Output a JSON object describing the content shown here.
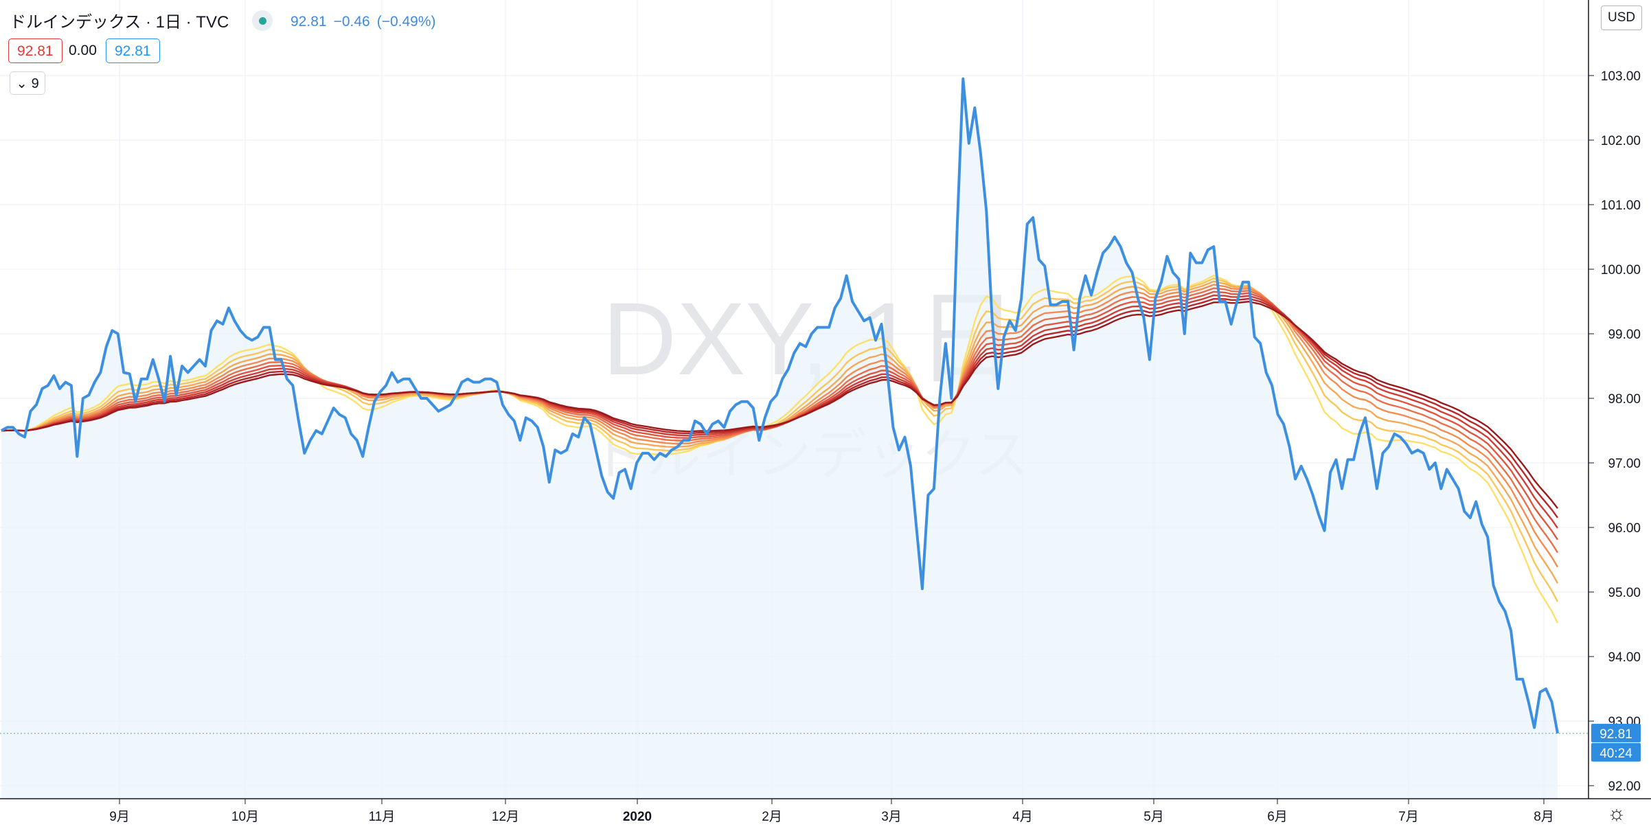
{
  "header": {
    "title": "ドルインデックス · 1日 · TVC",
    "last": "92.81",
    "change": "−0.46",
    "change_pct": "(−0.49%)",
    "sell_price": "92.81",
    "spread": "0.00",
    "buy_price": "92.81",
    "indicator_count": "9",
    "currency": "USD"
  },
  "watermark": {
    "symbol": "DXY, 1日",
    "name": "ドルインデックス"
  },
  "price_label": "92.81",
  "countdown_label": "40:24",
  "colors": {
    "price_line": "#3d8fe0",
    "area_fill": "#eaf3fb",
    "ribbon": [
      "#fde06a",
      "#fac65a",
      "#f6a955",
      "#f28c50",
      "#ea704a",
      "#df5641",
      "#cf3e34",
      "#b8282a",
      "#9a1a1c"
    ]
  },
  "chart_data": {
    "type": "line",
    "title": "",
    "xlabel": "",
    "ylabel": "",
    "ylim": [
      91.75,
      104.2
    ],
    "x_ticks": [
      "9月",
      "10月",
      "11月",
      "12月",
      "2020",
      "2月",
      "3月",
      "4月",
      "5月",
      "6月",
      "7月",
      "8月"
    ],
    "y_ticks": [
      "92.00",
      "93.00",
      "94.00",
      "95.00",
      "96.00",
      "97.00",
      "98.00",
      "99.00",
      "100.00",
      "101.00",
      "102.00",
      "103.00"
    ],
    "series": [
      {
        "values": [
          97.5,
          97.55,
          97.55,
          97.45,
          97.4,
          97.8,
          97.9,
          98.15,
          98.2,
          98.35,
          98.15,
          98.25,
          98.2,
          97.1,
          98.0,
          98.05,
          98.25,
          98.4,
          98.8,
          99.05,
          99.0,
          98.4,
          98.38,
          97.95,
          98.3,
          98.3,
          98.6,
          98.3,
          97.95,
          98.65,
          98.05,
          98.5,
          98.4,
          98.5,
          98.6,
          98.5,
          99.05,
          99.2,
          99.15,
          99.4,
          99.2,
          99.05,
          98.95,
          98.9,
          98.95,
          99.1,
          99.1,
          98.6,
          98.6,
          98.3,
          98.2,
          97.65,
          97.15,
          97.35,
          97.5,
          97.45,
          97.65,
          97.85,
          97.75,
          97.7,
          97.45,
          97.35,
          97.1,
          97.55,
          97.95,
          98.1,
          98.2,
          98.4,
          98.25,
          98.3,
          98.3,
          98.15,
          98.0,
          98.0,
          97.9,
          97.8,
          97.85,
          97.9,
          98.05,
          98.25,
          98.3,
          98.25,
          98.25,
          98.3,
          98.3,
          98.25,
          97.9,
          97.75,
          97.65,
          97.35,
          97.7,
          97.65,
          97.55,
          97.25,
          96.7,
          97.2,
          97.15,
          97.2,
          97.45,
          97.4,
          97.7,
          97.6,
          97.2,
          96.8,
          96.55,
          96.45,
          96.85,
          96.9,
          96.6,
          97.0,
          97.15,
          97.15,
          97.05,
          97.15,
          97.1,
          97.2,
          97.25,
          97.35,
          97.35,
          97.65,
          97.6,
          97.45,
          97.6,
          97.65,
          97.55,
          97.8,
          97.9,
          97.95,
          97.95,
          97.85,
          97.35,
          97.7,
          97.95,
          98.05,
          98.3,
          98.45,
          98.7,
          98.85,
          98.8,
          99.0,
          99.1,
          99.1,
          99.1,
          99.4,
          99.55,
          99.9,
          99.5,
          99.35,
          99.2,
          99.25,
          98.9,
          99.15,
          98.4,
          97.55,
          97.2,
          97.4,
          96.95,
          96.0,
          95.05,
          96.5,
          96.6,
          98.0,
          98.85,
          98.0,
          100.7,
          102.95,
          101.95,
          102.5,
          101.8,
          100.9,
          99.2,
          98.15,
          98.95,
          99.2,
          99.05,
          99.55,
          100.7,
          100.8,
          100.15,
          100.05,
          99.45,
          99.45,
          99.5,
          99.5,
          98.75,
          99.55,
          99.9,
          99.6,
          99.95,
          100.25,
          100.35,
          100.5,
          100.35,
          100.1,
          99.95,
          99.55,
          99.25,
          98.6,
          99.55,
          99.8,
          100.2,
          99.95,
          99.85,
          99.0,
          100.25,
          100.1,
          100.1,
          100.3,
          100.35,
          99.5,
          99.5,
          99.15,
          99.5,
          99.8,
          99.8,
          98.95,
          98.85,
          98.4,
          98.2,
          97.75,
          97.6,
          97.25,
          96.75,
          96.95,
          96.75,
          96.5,
          96.2,
          95.95,
          96.85,
          97.05,
          96.6,
          97.05,
          97.05,
          97.45,
          97.7,
          97.2,
          96.6,
          97.15,
          97.25,
          97.45,
          97.4,
          97.3,
          97.15,
          97.2,
          97.15,
          96.9,
          97.0,
          96.6,
          96.9,
          96.75,
          96.6,
          96.25,
          96.15,
          96.4,
          96.05,
          95.85,
          95.1,
          94.85,
          94.7,
          94.4,
          93.65,
          93.65,
          93.3,
          92.9,
          93.45,
          93.5,
          93.3,
          92.81
        ]
      }
    ]
  }
}
